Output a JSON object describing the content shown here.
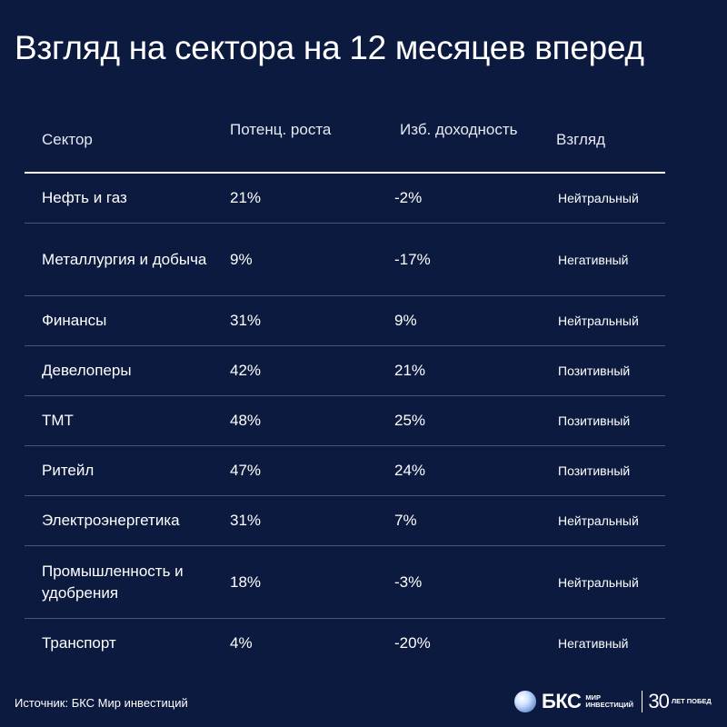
{
  "title": "Взгляд на сектора на 12 месяцев вперед",
  "table": {
    "headers": {
      "sector": "Сектор",
      "growth": "Потенц. роста",
      "yield": "Изб. доходность",
      "view": "Взгляд"
    },
    "rows": [
      {
        "sector": "Нефть и газ",
        "growth": "21%",
        "yield": "-2%",
        "view": "Нейтральный"
      },
      {
        "sector": "Металлургия и добыча",
        "growth": "9%",
        "yield": "-17%",
        "view": "Негативный"
      },
      {
        "sector": "Финансы",
        "growth": "31%",
        "yield": "9%",
        "view": "Нейтральный"
      },
      {
        "sector": "Девелоперы",
        "growth": "42%",
        "yield": "21%",
        "view": "Позитивный"
      },
      {
        "sector": "ТМТ",
        "growth": "48%",
        "yield": "25%",
        "view": "Позитивный"
      },
      {
        "sector": "Ритейл",
        "growth": "47%",
        "yield": "24%",
        "view": "Позитивный"
      },
      {
        "sector": "Электроэнергетика",
        "growth": "31%",
        "yield": "7%",
        "view": "Нейтральный"
      },
      {
        "sector": "Промышленность и удобрения",
        "growth": "18%",
        "yield": "-3%",
        "view": "Нейтральный"
      },
      {
        "sector": "Транспорт",
        "growth": "4%",
        "yield": "-20%",
        "view": "Негативный"
      }
    ]
  },
  "footer": {
    "source": "Источник: БКС Мир инвестиций",
    "brand_name": "БКС",
    "brand_sub": "МИР ИНВЕСТИЦИЙ",
    "anniversary_number": "30",
    "anniversary_text": "ЛЕТ ПОБЕД"
  }
}
